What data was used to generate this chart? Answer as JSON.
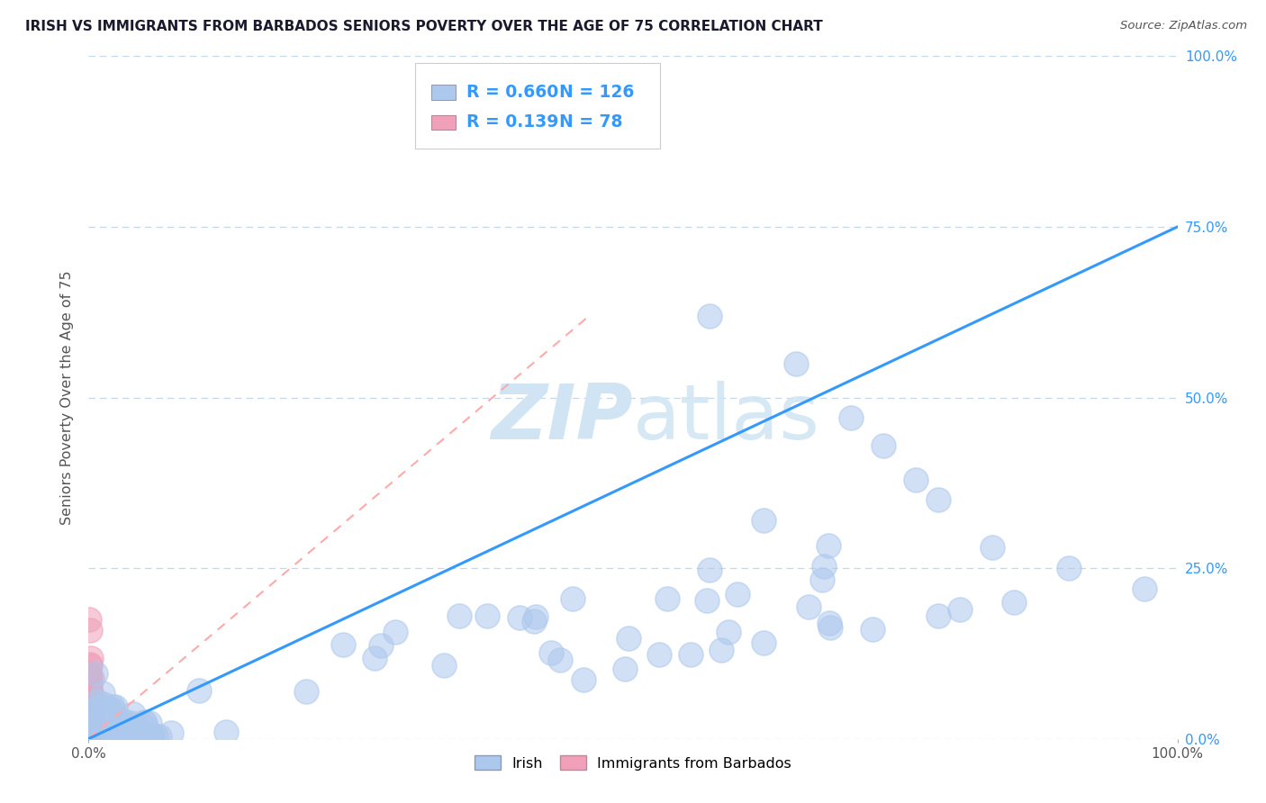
{
  "title": "IRISH VS IMMIGRANTS FROM BARBADOS SENIORS POVERTY OVER THE AGE OF 75 CORRELATION CHART",
  "source": "Source: ZipAtlas.com",
  "ylabel": "Seniors Poverty Over the Age of 75",
  "r_irish": 0.66,
  "n_irish": 126,
  "r_barbados": 0.139,
  "n_barbados": 78,
  "irish_color": "#adc8ed",
  "barbados_color": "#f0a0b8",
  "trendline_irish_color": "#3399ff",
  "trendline_barbados_color": "#ffaaaa",
  "watermark_color": "#d0e4f4",
  "background_color": "#ffffff",
  "grid_color": "#c5d8ea",
  "title_color": "#1a1a2e",
  "source_color": "#555555",
  "axis_label_color": "#555555",
  "tick_color": "#3399ff",
  "legend_label_color": "#1a1a2e"
}
